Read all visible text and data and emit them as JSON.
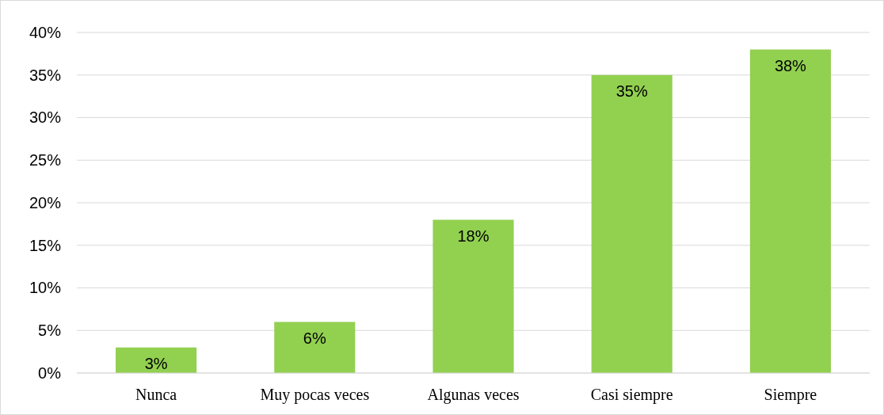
{
  "chart_data": {
    "type": "bar",
    "categories": [
      "Nunca",
      "Muy pocas veces",
      "Algunas veces",
      "Casi siempre",
      "Siempre"
    ],
    "values": [
      3,
      6,
      18,
      35,
      38
    ],
    "color": "#92d050",
    "ylim": [
      0,
      40
    ],
    "yticks": [
      {
        "value": 0,
        "label": "0%"
      },
      {
        "value": 5,
        "label": "5%"
      },
      {
        "value": 10,
        "label": "10%"
      },
      {
        "value": 15,
        "label": "15%"
      },
      {
        "value": 20,
        "label": "20%"
      },
      {
        "value": 25,
        "label": "25%"
      },
      {
        "value": 30,
        "label": "30%"
      },
      {
        "value": 35,
        "label": "35%"
      },
      {
        "value": 40,
        "label": "40%"
      }
    ],
    "grid": "y",
    "value_labels": [
      "3%",
      "6%",
      "18%",
      "35%",
      "38%"
    ]
  }
}
